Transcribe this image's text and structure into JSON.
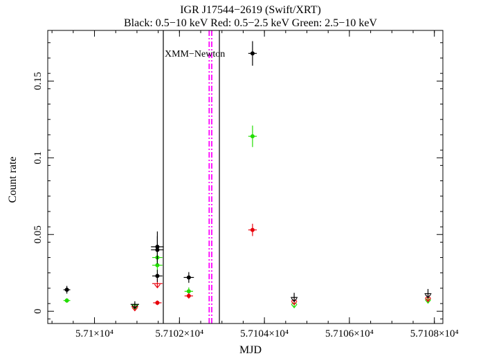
{
  "chart_data": {
    "type": "scatter",
    "title": "IGR J17544−2619 (Swift/XRT)",
    "subtitle": "Black: 0.5−10 keV   Red: 0.5−2.5 keV   Green: 2.5−10 keV",
    "xlabel": "MJD",
    "ylabel": "Count rate",
    "xlim": [
      57098.9,
      57108.2
    ],
    "ylim": [
      -0.008,
      0.183
    ],
    "x_ticks": [
      {
        "value": 57100,
        "label": "5.71×10⁴"
      },
      {
        "value": 57102,
        "label": "5.7102×10⁴"
      },
      {
        "value": 57104,
        "label": "5.7104×10⁴"
      },
      {
        "value": 57106,
        "label": "5.7106×10⁴"
      },
      {
        "value": 57108,
        "label": "5.7108×10⁴"
      }
    ],
    "y_ticks": [
      {
        "value": 0,
        "label": "0"
      },
      {
        "value": 0.05,
        "label": "0.05"
      },
      {
        "value": 0.1,
        "label": "0.1"
      },
      {
        "value": 0.15,
        "label": "0.15"
      }
    ],
    "grid": false,
    "series": [
      {
        "color": "#000000",
        "points": [
          {
            "x": 57099.35,
            "y": 0.014,
            "xerr": 0.08,
            "yerr": 0.0025
          },
          {
            "x": 57100.95,
            "y": 0.0045,
            "xerr": 0.1,
            "yerr": 0.002,
            "upper_limit": true
          },
          {
            "x": 57101.48,
            "y": 0.042,
            "xerr": 0.15,
            "yerr": 0.01
          },
          {
            "x": 57101.48,
            "y": 0.04,
            "xerr": 0.15,
            "yerr": 0.009
          },
          {
            "x": 57101.48,
            "y": 0.023,
            "xerr": 0.12,
            "yerr": 0.004
          },
          {
            "x": 57102.22,
            "y": 0.022,
            "xerr": 0.12,
            "yerr": 0.0035
          },
          {
            "x": 57103.72,
            "y": 0.168,
            "xerr": 0.1,
            "yerr": 0.008
          },
          {
            "x": 57104.7,
            "y": 0.009,
            "xerr": 0.08,
            "yerr": 0.003,
            "upper_limit": true
          },
          {
            "x": 57107.85,
            "y": 0.0115,
            "xerr": 0.08,
            "yerr": 0.003,
            "upper_limit": true
          }
        ]
      },
      {
        "color": "#e8000b",
        "points": [
          {
            "x": 57100.95,
            "y": 0.003,
            "xerr": 0.08,
            "yerr": 0.0015,
            "upper_limit": true
          },
          {
            "x": 57101.48,
            "y": 0.018,
            "xerr": 0.12,
            "yerr": 0.004,
            "upper_limit": true
          },
          {
            "x": 57101.48,
            "y": 0.0055,
            "xerr": 0.1,
            "yerr": 0.0015
          },
          {
            "x": 57102.22,
            "y": 0.01,
            "xerr": 0.1,
            "yerr": 0.0018
          },
          {
            "x": 57103.72,
            "y": 0.053,
            "xerr": 0.1,
            "yerr": 0.004
          },
          {
            "x": 57104.7,
            "y": 0.007,
            "xerr": 0.06,
            "yerr": 0.002,
            "upper_limit": true
          },
          {
            "x": 57107.85,
            "y": 0.009,
            "xerr": 0.06,
            "yerr": 0.002,
            "upper_limit": true
          }
        ]
      },
      {
        "color": "#22dd00",
        "points": [
          {
            "x": 57099.35,
            "y": 0.007,
            "xerr": 0.08,
            "yerr": 0.0015
          },
          {
            "x": 57100.95,
            "y": 0.004,
            "xerr": 0.08,
            "yerr": 0.0015,
            "upper_limit": true
          },
          {
            "x": 57101.48,
            "y": 0.035,
            "xerr": 0.12,
            "yerr": 0.005
          },
          {
            "x": 57101.48,
            "y": 0.03,
            "xerr": 0.12,
            "yerr": 0.005
          },
          {
            "x": 57102.22,
            "y": 0.013,
            "xerr": 0.1,
            "yerr": 0.0025
          },
          {
            "x": 57103.72,
            "y": 0.114,
            "xerr": 0.1,
            "yerr": 0.007
          },
          {
            "x": 57104.7,
            "y": 0.005,
            "xerr": 0.06,
            "yerr": 0.0015,
            "upper_limit": true
          },
          {
            "x": 57107.85,
            "y": 0.008,
            "xerr": 0.06,
            "yerr": 0.0015,
            "upper_limit": true
          }
        ]
      }
    ],
    "annotations": [
      {
        "type": "vline",
        "x": 57101.62,
        "color": "#000000",
        "style": "solid"
      },
      {
        "type": "vline",
        "x": 57102.94,
        "color": "#000000",
        "style": "solid"
      },
      {
        "type": "vline",
        "x": 57102.7,
        "color": "#ff00ff",
        "style": "dash-dot"
      },
      {
        "type": "vline",
        "x": 57102.76,
        "color": "#ff00ff",
        "style": "dash-dot"
      },
      {
        "type": "text",
        "text": "XMM−Newton",
        "x": 57101.62,
        "y": 0.165,
        "anchor": "start"
      }
    ]
  }
}
